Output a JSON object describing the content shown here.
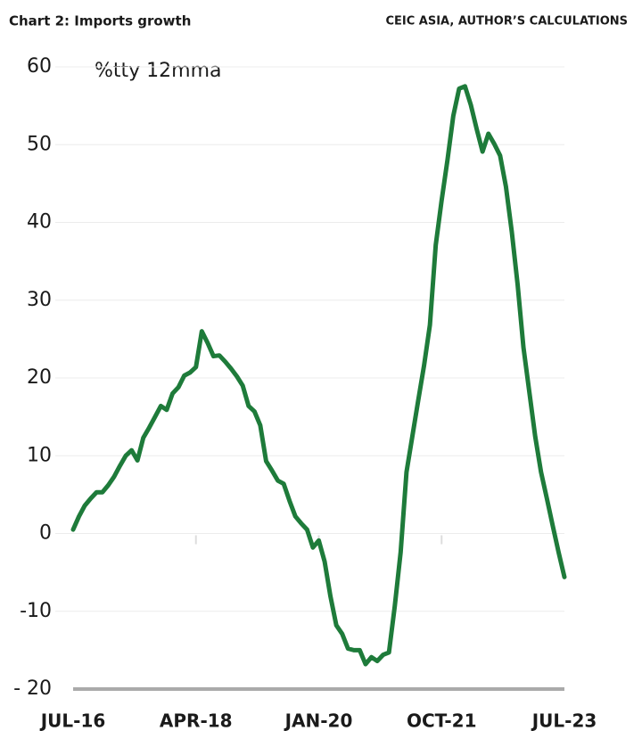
{
  "chart_data": {
    "type": "line",
    "title": "Chart 2: Imports growth",
    "source": "CEIC ASIA, AUTHOR’S CALCULATIONS",
    "annotation": "%tty 12mma",
    "color": "#1e7b3a",
    "grid": true,
    "categories": [
      "JUL-16",
      null,
      null,
      null,
      null,
      null,
      null,
      null,
      null,
      null,
      null,
      null,
      null,
      null,
      null,
      null,
      null,
      null,
      null,
      null,
      null,
      "APR-18",
      null,
      null,
      null,
      null,
      null,
      null,
      null,
      null,
      null,
      null,
      null,
      null,
      null,
      null,
      null,
      null,
      null,
      null,
      null,
      null,
      "JAN-20",
      null,
      null,
      null,
      null,
      null,
      null,
      null,
      null,
      null,
      null,
      null,
      null,
      null,
      null,
      null,
      null,
      null,
      null,
      null,
      null,
      "OCT-21",
      null,
      null,
      null,
      null,
      null,
      null,
      null,
      null,
      null,
      null,
      null,
      null,
      null,
      null,
      null,
      null,
      null,
      null,
      null,
      null,
      "JUL-23"
    ],
    "values": [
      0.5,
      2.2,
      3.6,
      4.5,
      5.3,
      5.3,
      6.2,
      7.3,
      8.7,
      10.0,
      10.7,
      9.4,
      12.3,
      13.6,
      15.0,
      16.4,
      15.9,
      18.0,
      18.8,
      20.3,
      20.7,
      21.4,
      26.0,
      24.5,
      22.8,
      22.9,
      22.1,
      21.2,
      20.2,
      19.0,
      16.4,
      15.7,
      13.9,
      9.3,
      8.1,
      6.8,
      6.4,
      4.2,
      2.2,
      1.3,
      0.5,
      -1.8,
      -0.9,
      -3.6,
      -8.1,
      -11.8,
      -12.9,
      -14.8,
      -15.0,
      -15.0,
      -16.8,
      -15.9,
      -16.4,
      -15.6,
      -15.3,
      -9.3,
      -2.4,
      7.9,
      12.5,
      17.1,
      21.6,
      26.8,
      37.1,
      42.8,
      48.0,
      53.7,
      57.2,
      57.5,
      55.1,
      52.0,
      49.1,
      51.4,
      50.1,
      48.6,
      44.6,
      38.8,
      32.0,
      23.9,
      18.2,
      12.5,
      7.9,
      4.5,
      1.0,
      -2.4,
      -5.6
    ],
    "ylim": [
      -20,
      60
    ],
    "yticks": [
      {
        "value": -20,
        "label": "- 20"
      },
      -10,
      0,
      10,
      20,
      30,
      40,
      50,
      60
    ]
  }
}
